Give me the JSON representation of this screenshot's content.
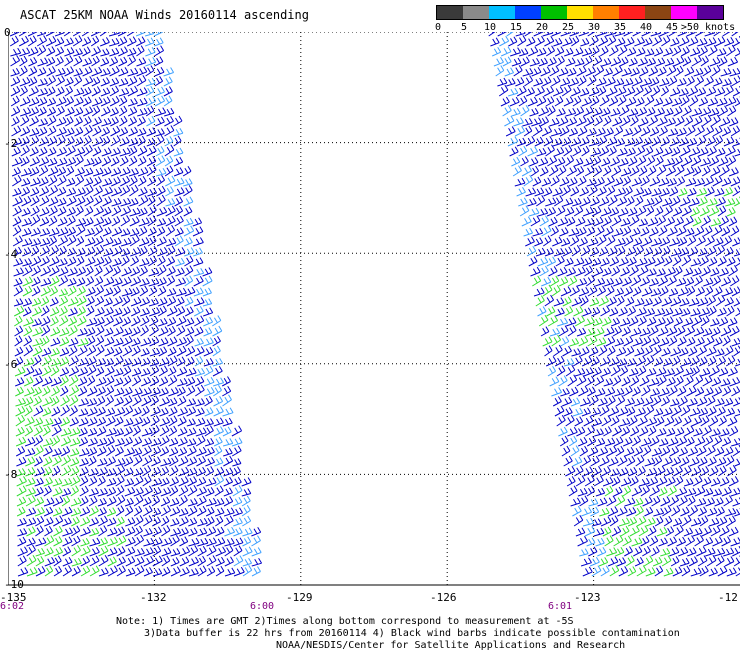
{
  "title": "ASCAT 25KM NOAA Winds 20160114 ascending",
  "legend": {
    "labels": [
      "0",
      "5",
      "10",
      "15",
      "20",
      "25",
      "30",
      "35",
      "40",
      "45",
      ">50 knots"
    ],
    "colors": [
      "#3a3a3a",
      "#8a8a8a",
      "#00bfff",
      "#0040ff",
      "#00c000",
      "#ffe000",
      "#ff8000",
      "#ff2020",
      "#8b4513",
      "#ff00ff",
      "#5a009a"
    ]
  },
  "axes": {
    "lon_ticks": [
      "-135",
      "-132",
      "-129",
      "-126",
      "-123",
      "-12"
    ],
    "lat_ticks": [
      "0",
      "-2",
      "-4",
      "-6",
      "-8",
      "-10"
    ]
  },
  "time_labels": [
    "6:02",
    "6:00",
    "6:01"
  ],
  "notes": [
    "Note: 1) Times are GMT 2)Times along bottom correspond to measurement at -5S",
    "3)Data buffer is 22 hrs from 20160114 4) Black wind barbs indicate possible contamination",
    "NOAA/NESDIS/Center for Satellite Applications and Research"
  ],
  "colors": {
    "barb_main": "#0000c8",
    "barb_light": "#3fa0ff",
    "barb_green": "#33dd33"
  }
}
